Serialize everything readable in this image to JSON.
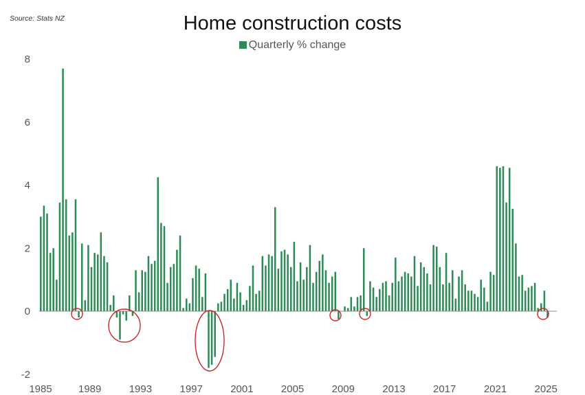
{
  "source": "Source: Stats NZ",
  "title": "Home construction costs",
  "legend": {
    "label": "Quarterly % change",
    "color": "#2e8b57"
  },
  "chart_data": {
    "type": "bar",
    "title": "Home construction costs",
    "xlabel": "",
    "ylabel": "",
    "ylim": [
      -2,
      8
    ],
    "yticks": [
      -2,
      0,
      2,
      4,
      6,
      8
    ],
    "xticks": [
      "1985",
      "1989",
      "1993",
      "1997",
      "2001",
      "2005",
      "2009",
      "2013",
      "2017",
      "2021",
      "2025"
    ],
    "grid": false,
    "legend_position": "top-center",
    "series": [
      {
        "name": "Quarterly % change",
        "color": "#2e8b57",
        "x_start": "1985 Q1",
        "frequency": "quarterly",
        "values": [
          3.0,
          3.35,
          3.1,
          1.85,
          2.0,
          1.0,
          3.45,
          7.7,
          3.55,
          2.4,
          2.5,
          3.55,
          -0.2,
          2.15,
          0.35,
          2.1,
          1.4,
          1.85,
          1.8,
          2.5,
          1.75,
          1.55,
          0.2,
          0.5,
          -0.2,
          -0.9,
          -0.1,
          -0.3,
          0.5,
          -0.15,
          1.3,
          0.6,
          1.3,
          1.25,
          1.75,
          1.5,
          1.6,
          4.25,
          2.8,
          2.7,
          0.9,
          1.4,
          1.5,
          1.95,
          2.4,
          0.1,
          0.4,
          0.25,
          1.05,
          1.45,
          1.35,
          0.45,
          1.2,
          -1.8,
          -1.7,
          -1.45,
          0.25,
          0.3,
          0.55,
          0.7,
          1.0,
          0.4,
          0.9,
          0.6,
          0.2,
          0.35,
          0.8,
          1.45,
          0.55,
          0.65,
          1.75,
          1.45,
          1.8,
          1.75,
          3.3,
          1.35,
          1.9,
          1.95,
          1.8,
          1.4,
          2.2,
          0.95,
          1.55,
          1.0,
          1.4,
          2.1,
          0.9,
          1.25,
          1.6,
          1.8,
          1.3,
          0.9,
          1.1,
          1.25,
          -0.25,
          0.0,
          0.15,
          0.1,
          0.45,
          0.15,
          0.45,
          0.5,
          2.0,
          -0.15,
          0.95,
          0.75,
          0.45,
          0.7,
          0.9,
          0.95,
          0.5,
          0.9,
          1.7,
          0.95,
          1.1,
          1.25,
          1.2,
          1.1,
          1.75,
          0.8,
          1.55,
          1.4,
          1.2,
          0.85,
          2.1,
          2.05,
          1.4,
          0.85,
          1.85,
          0.9,
          1.3,
          0.4,
          1.1,
          1.3,
          0.85,
          0.65,
          0.65,
          0.55,
          0.45,
          1.0,
          0.75,
          0.3,
          1.25,
          1.15,
          4.6,
          4.55,
          4.6,
          3.45,
          4.55,
          3.25,
          2.15,
          1.1,
          1.15,
          0.65,
          0.75,
          0.8,
          0.9,
          0.1,
          0.25,
          0.65,
          -0.2
        ]
      }
    ],
    "highlighted_periods": [
      "1987-88",
      "1991-92",
      "1998-99",
      "2008-09",
      "2011",
      "2025"
    ]
  }
}
